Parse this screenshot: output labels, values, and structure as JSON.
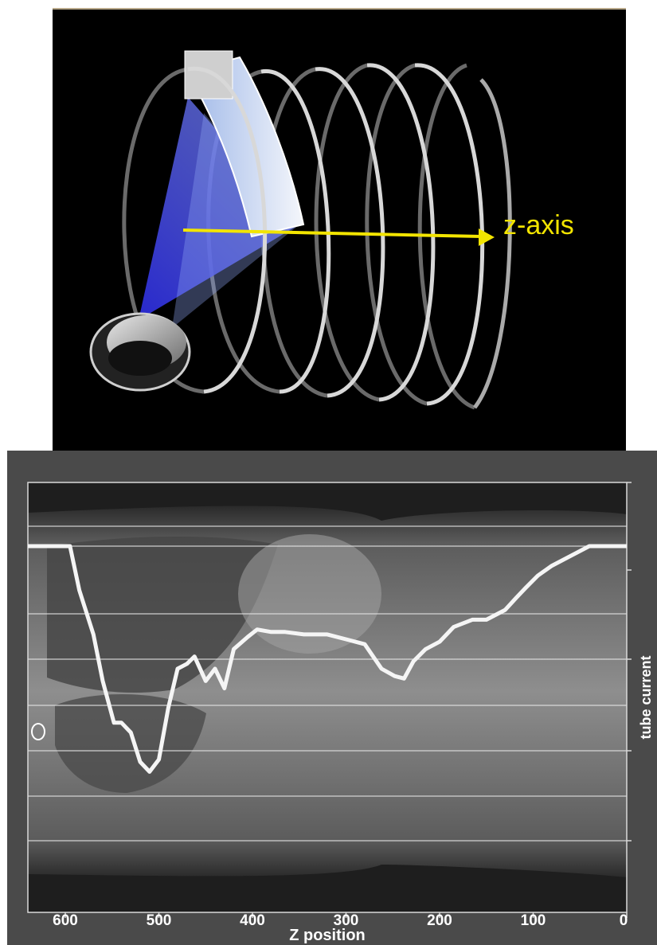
{
  "diagram": {
    "z_axis_label": "z-axis"
  },
  "chart_data": {
    "type": "line",
    "xlabel": "Z position",
    "ylabel": "tube current",
    "xlim": [
      640,
      0
    ],
    "x_ticks": [
      "600",
      "500",
      "400",
      "300",
      "200",
      "100",
      "0"
    ],
    "x_tick_values": [
      600,
      500,
      400,
      300,
      200,
      100,
      0
    ],
    "y_ticks_shown": false,
    "grid": true,
    "series": [
      {
        "values_relative": true,
        "x": [
          640,
          595,
          585,
          570,
          560,
          548,
          540,
          530,
          520,
          510,
          500,
          490,
          480,
          470,
          462,
          450,
          440,
          430,
          420,
          405,
          395,
          380,
          365,
          345,
          320,
          300,
          280,
          262,
          248,
          238,
          228,
          215,
          200,
          185,
          165,
          150,
          130,
          118,
          108,
          95,
          80,
          60,
          40,
          20,
          0
        ],
        "y": [
          0.0,
          0.0,
          0.18,
          0.36,
          0.55,
          0.72,
          0.72,
          0.76,
          0.88,
          0.92,
          0.87,
          0.66,
          0.5,
          0.48,
          0.45,
          0.55,
          0.5,
          0.58,
          0.42,
          0.37,
          0.34,
          0.35,
          0.35,
          0.36,
          0.36,
          0.38,
          0.4,
          0.5,
          0.53,
          0.54,
          0.47,
          0.42,
          0.39,
          0.33,
          0.3,
          0.3,
          0.26,
          0.21,
          0.17,
          0.12,
          0.08,
          0.04,
          0.0,
          0.0,
          0.0
        ]
      }
    ]
  }
}
